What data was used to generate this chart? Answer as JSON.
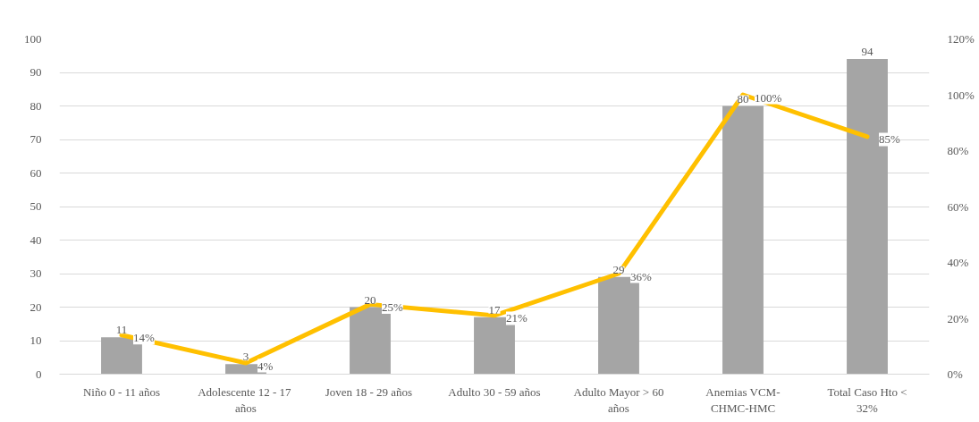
{
  "chart_data": {
    "type": "bar",
    "categories": [
      "Niño 0 - 11 años",
      "Adolescente  12 - 17 años",
      "Joven  18 - 29 años",
      "Adulto 30 - 59 años",
      "Adulto Mayor > 60 años",
      "Anemias VCM-CHMC-HMC",
      "Total Caso Hto < 32%"
    ],
    "series": [
      {
        "color": "#a5a5a5",
        "values": [
          11,
          3,
          20,
          17,
          29,
          80,
          94
        ],
        "value_labels": [
          "11",
          "3",
          "20",
          "17",
          "29",
          "80",
          "94"
        ]
      },
      {
        "type": "line",
        "axis": "y2",
        "color": "#ffc000",
        "values": [
          14,
          4,
          25,
          21,
          36,
          100,
          85
        ],
        "value_labels": [
          "14%",
          "4%",
          "25%",
          "21%",
          "36%",
          "100%",
          "85%"
        ]
      }
    ],
    "ylim": [
      0,
      100
    ],
    "yticks": [
      0,
      10,
      20,
      30,
      40,
      50,
      60,
      70,
      80,
      90,
      100
    ],
    "y2lim": [
      0,
      120
    ],
    "y2ticks": [
      {
        "value": 0,
        "label": "0%"
      },
      {
        "value": 20,
        "label": "20%"
      },
      {
        "value": 40,
        "label": "40%"
      },
      {
        "value": 60,
        "label": "60%"
      },
      {
        "value": 80,
        "label": "80%"
      },
      {
        "value": 100,
        "label": "100%"
      },
      {
        "value": 120,
        "label": "120%"
      }
    ],
    "grid": "y",
    "line_style": "solid"
  }
}
